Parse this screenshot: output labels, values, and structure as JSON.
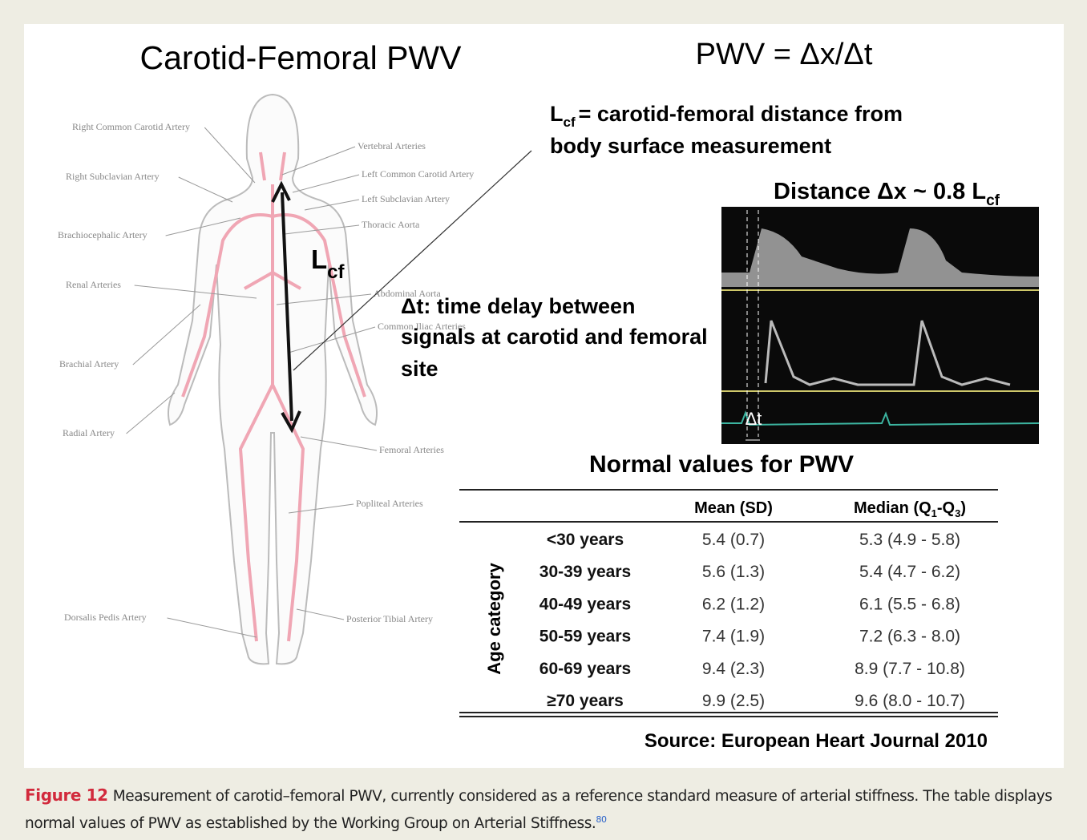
{
  "figure": {
    "title": "Carotid-Femoral PWV",
    "formula": "PWV = Δx/Δt",
    "lcf_definition": {
      "symbol": "L",
      "sub": "cf",
      "lines": [
        "= carotid-femoral distance from",
        "body surface measurement"
      ]
    },
    "distance_label": {
      "text": "Distance Δx ~ 0.8 L",
      "sub": "cf"
    },
    "arrow_label": {
      "symbol": "L",
      "sub": "cf"
    },
    "delay_label": {
      "lines": [
        "Δt: time delay between",
        "signals at carotid and femoral",
        "site"
      ]
    },
    "wave_label": "Δt",
    "arteries": [
      "Right Common Carotid Artery",
      "Vertebral Arteries",
      "Right Subclavian Artery",
      "Left Common Carotid Artery",
      "Left Subclavian Artery",
      "Thoracic Aorta",
      "Brachiocephalic Artery",
      "Renal Arteries",
      "Abdominal Aorta",
      "Common Iliac Arteries",
      "Brachial Artery",
      "Radial Artery",
      "Femoral Arteries",
      "Popliteal Arteries",
      "Dorsalis Pedis Artery",
      "Posterior Tibial Artery"
    ],
    "table": {
      "title": "Normal values for PWV",
      "headers": {
        "mean": "Mean (SD)",
        "median": [
          "Median (Q",
          "1",
          "-Q",
          "3",
          ")"
        ]
      },
      "row_group": "Age category",
      "rows": [
        [
          "<30 years",
          "5.4 (0.7)",
          "5.3 (4.9 - 5.8)"
        ],
        [
          "30-39 years",
          "5.6 (1.3)",
          "5.4 (4.7 - 6.2)"
        ],
        [
          "40-49 years",
          "6.2 (1.2)",
          "6.1 (5.5 - 6.8)"
        ],
        [
          "50-59 years",
          "7.4 (1.9)",
          "7.2 (6.3 - 8.0)"
        ],
        [
          "60-69 years",
          "9.4 (2.3)",
          "8.9 (7.7 - 10.8)"
        ],
        [
          "≥70 years",
          "9.9 (2.5)",
          "9.6 (8.0 - 10.7)"
        ]
      ]
    },
    "source": "Source: European Heart Journal 2010"
  },
  "caption": {
    "label": "Figure 12",
    "text": "Measurement of carotid–femoral PWV, currently considered as a reference standard measure of arterial stiffness. The table displays normal values of PWV as established by the Working Group on Arterial Stiffness.",
    "ref": "80"
  }
}
